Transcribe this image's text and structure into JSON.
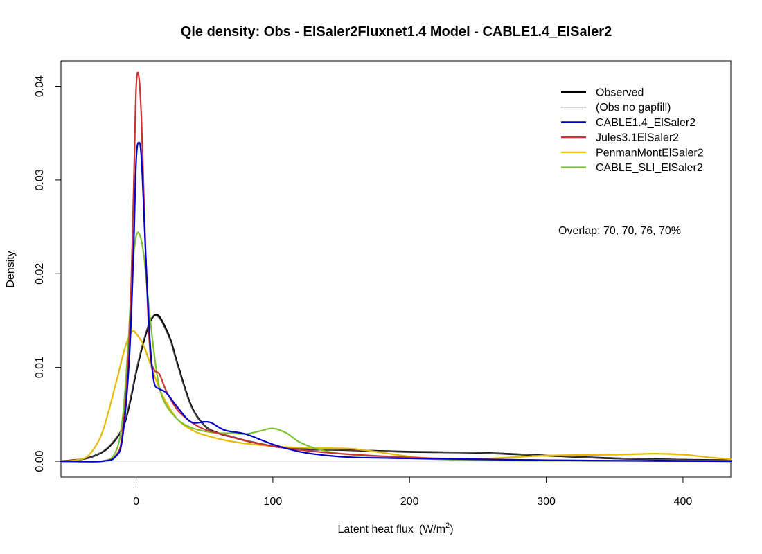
{
  "chart_data": {
    "type": "line",
    "title": "Qle density:   Obs - ElSaler2Fluxnet1.4   Model - CABLE1.4_ElSaler2",
    "xlabel": "Latent heat flux",
    "xlabel_units": "(W/m",
    "xlabel_sup": "2",
    "xlabel_close": ")",
    "ylabel": "Density",
    "xlim": [
      -55,
      435
    ],
    "ylim": [
      -0.0017,
      0.0427
    ],
    "x_ticks": [
      0,
      100,
      200,
      300,
      400
    ],
    "x_tick_labels": [
      "0",
      "100",
      "200",
      "300",
      "400"
    ],
    "y_ticks": [
      0.0,
      0.01,
      0.02,
      0.03,
      0.04
    ],
    "y_tick_labels": [
      "0.00",
      "0.01",
      "0.02",
      "0.03",
      "0.04"
    ],
    "grid": false,
    "legend_position": "top-right",
    "annotation": "Overlap: 70, 70, 76, 70%",
    "series": [
      {
        "name": "Observed",
        "color": "#000000",
        "points": [
          [
            -55,
            0
          ],
          [
            -40,
            0.0002
          ],
          [
            -30,
            0.0006
          ],
          [
            -20,
            0.0015
          ],
          [
            -10,
            0.0035
          ],
          [
            -5,
            0.006
          ],
          [
            0,
            0.0095
          ],
          [
            5,
            0.0125
          ],
          [
            10,
            0.0148
          ],
          [
            14,
            0.0156
          ],
          [
            18,
            0.0152
          ],
          [
            25,
            0.013
          ],
          [
            30,
            0.0105
          ],
          [
            40,
            0.006
          ],
          [
            50,
            0.0038
          ],
          [
            60,
            0.003
          ],
          [
            70,
            0.0026
          ],
          [
            80,
            0.0022
          ],
          [
            100,
            0.0016
          ],
          [
            120,
            0.0013
          ],
          [
            150,
            0.0012
          ],
          [
            200,
            0.001
          ],
          [
            250,
            0.0009
          ],
          [
            300,
            0.0006
          ],
          [
            350,
            0.0003
          ],
          [
            400,
            0.00015
          ],
          [
            435,
            0.0001
          ]
        ]
      },
      {
        "name": "(Obs no gapfill)",
        "color": "#555555",
        "points": [
          [
            -55,
            0
          ],
          [
            -40,
            0.0002
          ],
          [
            -30,
            0.0006
          ],
          [
            -20,
            0.0016
          ],
          [
            -10,
            0.0036
          ],
          [
            -5,
            0.0062
          ],
          [
            0,
            0.0097
          ],
          [
            5,
            0.0127
          ],
          [
            10,
            0.015
          ],
          [
            14,
            0.0155
          ],
          [
            18,
            0.015
          ],
          [
            25,
            0.0128
          ],
          [
            30,
            0.0103
          ],
          [
            40,
            0.0059
          ],
          [
            50,
            0.0038
          ],
          [
            60,
            0.003
          ],
          [
            70,
            0.0026
          ],
          [
            80,
            0.0022
          ],
          [
            100,
            0.0016
          ],
          [
            120,
            0.0013
          ],
          [
            150,
            0.0012
          ],
          [
            200,
            0.001
          ],
          [
            250,
            0.0009
          ],
          [
            300,
            0.0006
          ],
          [
            350,
            0.0003
          ],
          [
            400,
            0.00015
          ],
          [
            435,
            0.0001
          ]
        ]
      },
      {
        "name": "CABLE1.4_ElSaler2",
        "color": "#0000cc",
        "points": [
          [
            -55,
            0
          ],
          [
            -25,
            0
          ],
          [
            -15,
            0.0005
          ],
          [
            -10,
            0.0025
          ],
          [
            -5,
            0.011
          ],
          [
            -2,
            0.022
          ],
          [
            0,
            0.032
          ],
          [
            2,
            0.034
          ],
          [
            4,
            0.032
          ],
          [
            7,
            0.022
          ],
          [
            10,
            0.013
          ],
          [
            13,
            0.0085
          ],
          [
            17,
            0.0077
          ],
          [
            22,
            0.0073
          ],
          [
            30,
            0.0058
          ],
          [
            40,
            0.0042
          ],
          [
            50,
            0.0042
          ],
          [
            55,
            0.0041
          ],
          [
            65,
            0.0033
          ],
          [
            80,
            0.0029
          ],
          [
            100,
            0.0018
          ],
          [
            120,
            0.001
          ],
          [
            140,
            0.0006
          ],
          [
            160,
            0.0004
          ],
          [
            200,
            0.0003
          ],
          [
            250,
            0.0002
          ],
          [
            300,
            0.0001
          ],
          [
            350,
            5e-05
          ],
          [
            435,
            0
          ]
        ]
      },
      {
        "name": "Jules3.1ElSaler2",
        "color": "#cc3333",
        "points": [
          [
            -55,
            0
          ],
          [
            -25,
            0
          ],
          [
            -15,
            0.0006
          ],
          [
            -10,
            0.003
          ],
          [
            -5,
            0.013
          ],
          [
            -2,
            0.028
          ],
          [
            0,
            0.0398
          ],
          [
            2,
            0.041
          ],
          [
            4,
            0.036
          ],
          [
            7,
            0.022
          ],
          [
            10,
            0.012
          ],
          [
            13,
            0.0098
          ],
          [
            17,
            0.0093
          ],
          [
            22,
            0.0075
          ],
          [
            30,
            0.0055
          ],
          [
            40,
            0.0042
          ],
          [
            50,
            0.0034
          ],
          [
            65,
            0.0028
          ],
          [
            80,
            0.0022
          ],
          [
            100,
            0.0016
          ],
          [
            120,
            0.0012
          ],
          [
            150,
            0.0008
          ],
          [
            200,
            0.0004
          ],
          [
            250,
            0.0002
          ],
          [
            300,
            0.0001
          ],
          [
            350,
            5e-05
          ],
          [
            435,
            0
          ]
        ]
      },
      {
        "name": "PenmanMontElSaler2",
        "color": "#e6b800",
        "points": [
          [
            -55,
            0
          ],
          [
            -45,
            0.0001
          ],
          [
            -35,
            0.0006
          ],
          [
            -25,
            0.003
          ],
          [
            -15,
            0.0082
          ],
          [
            -8,
            0.0122
          ],
          [
            -3,
            0.0138
          ],
          [
            0,
            0.0136
          ],
          [
            5,
            0.0125
          ],
          [
            10,
            0.0105
          ],
          [
            15,
            0.0085
          ],
          [
            20,
            0.0068
          ],
          [
            30,
            0.0045
          ],
          [
            40,
            0.0034
          ],
          [
            50,
            0.0028
          ],
          [
            70,
            0.0021
          ],
          [
            100,
            0.0016
          ],
          [
            130,
            0.0014
          ],
          [
            160,
            0.0013
          ],
          [
            200,
            0.0005
          ],
          [
            230,
            0.0002
          ],
          [
            260,
            0.0003
          ],
          [
            300,
            0.0006
          ],
          [
            350,
            0.0007
          ],
          [
            380,
            0.0008
          ],
          [
            400,
            0.0007
          ],
          [
            420,
            0.0004
          ],
          [
            435,
            0.0002
          ]
        ]
      },
      {
        "name": "CABLE_SLI_ElSaler2",
        "color": "#7fc031",
        "points": [
          [
            -55,
            0
          ],
          [
            -25,
            0
          ],
          [
            -15,
            0.001
          ],
          [
            -10,
            0.0045
          ],
          [
            -6,
            0.012
          ],
          [
            -3,
            0.02
          ],
          [
            0,
            0.024
          ],
          [
            3,
            0.024
          ],
          [
            6,
            0.0215
          ],
          [
            10,
            0.0155
          ],
          [
            15,
            0.0095
          ],
          [
            20,
            0.0065
          ],
          [
            30,
            0.0045
          ],
          [
            40,
            0.0036
          ],
          [
            50,
            0.0032
          ],
          [
            60,
            0.003
          ],
          [
            70,
            0.003
          ],
          [
            80,
            0.0029
          ],
          [
            90,
            0.0032
          ],
          [
            100,
            0.0035
          ],
          [
            110,
            0.003
          ],
          [
            120,
            0.002
          ],
          [
            135,
            0.0012
          ],
          [
            150,
            0.0008
          ],
          [
            175,
            0.0005
          ],
          [
            200,
            0.0003
          ],
          [
            250,
            0.0001
          ],
          [
            300,
            5e-05
          ],
          [
            435,
            0
          ]
        ]
      }
    ]
  }
}
